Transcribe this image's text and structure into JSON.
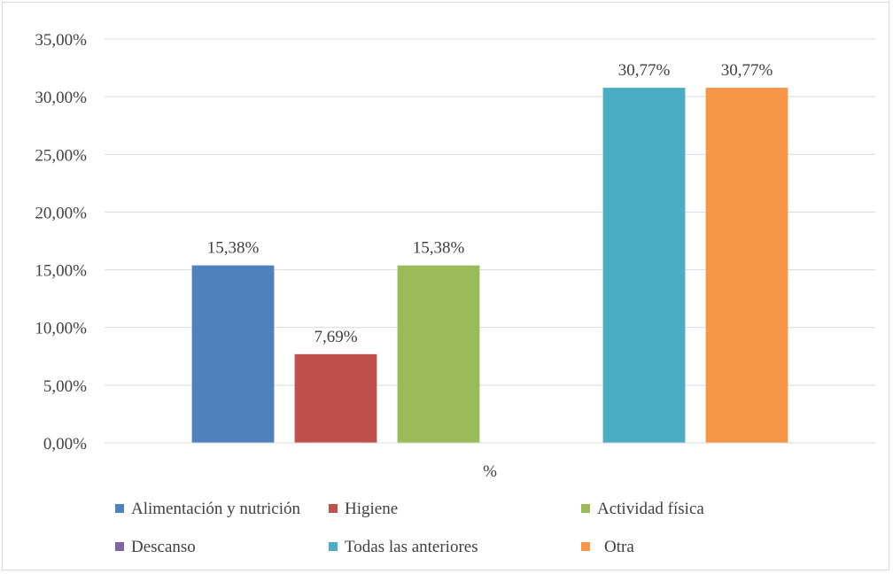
{
  "chart_data": {
    "type": "bar",
    "categories": [
      "%"
    ],
    "xlabel": "%",
    "ylabel": "",
    "ylim": [
      0,
      35
    ],
    "y_ticks": [
      "0,00%",
      "5,00%",
      "10,00%",
      "15,00%",
      "20,00%",
      "25,00%",
      "30,00%",
      "35,00%"
    ],
    "y_tick_values": [
      0,
      5,
      10,
      15,
      20,
      25,
      30,
      35
    ],
    "grid": true,
    "legend_position": "bottom",
    "series": [
      {
        "name": "Alimentación y nutrición",
        "values": [
          15.38
        ],
        "label": "15,38%",
        "color": "#4f81bd"
      },
      {
        "name": "Higiene",
        "values": [
          7.69
        ],
        "label": "7,69%",
        "color": "#c0504d"
      },
      {
        "name": "Actividad física",
        "values": [
          15.38
        ],
        "label": "15,38%",
        "color": "#9bbb59"
      },
      {
        "name": "Descanso",
        "values": [
          0
        ],
        "label": "",
        "color": "#8064a2"
      },
      {
        "name": "Todas las anteriores",
        "values": [
          30.77
        ],
        "label": "30,77%",
        "color": "#4bacc6"
      },
      {
        "name": "Otra",
        "values": [
          30.77
        ],
        "label": "30,77%",
        "color": "#f79646"
      }
    ]
  }
}
